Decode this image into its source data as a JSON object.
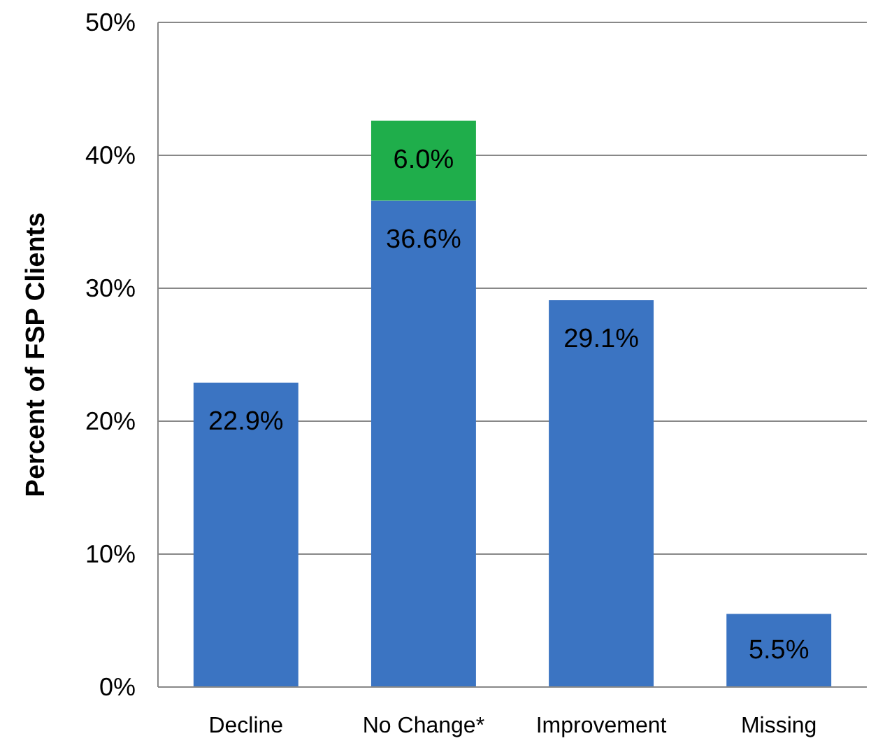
{
  "chart_data": {
    "type": "bar",
    "stacked": true,
    "ylabel": "Percent of FSP Clients",
    "categories": [
      "Decline",
      "No Change*",
      "Improvement",
      "Missing"
    ],
    "series": [
      {
        "color": "#3b74c2",
        "values": [
          22.9,
          36.6,
          29.1,
          5.5
        ],
        "value_labels": [
          "22.9%",
          "36.6%",
          "29.1%",
          "5.5%"
        ]
      },
      {
        "color": "#1fae4b",
        "values": [
          null,
          6.0,
          null,
          null
        ],
        "value_labels": [
          null,
          "6.0%",
          null,
          null
        ]
      }
    ],
    "ylim": [
      0,
      50
    ],
    "yticks": [
      {
        "value": 0,
        "label": "0%"
      },
      {
        "value": 10,
        "label": "10%"
      },
      {
        "value": 20,
        "label": "20%"
      },
      {
        "value": 30,
        "label": "30%"
      },
      {
        "value": 40,
        "label": "40%"
      },
      {
        "value": 50,
        "label": "50%"
      }
    ],
    "grid": "y"
  }
}
